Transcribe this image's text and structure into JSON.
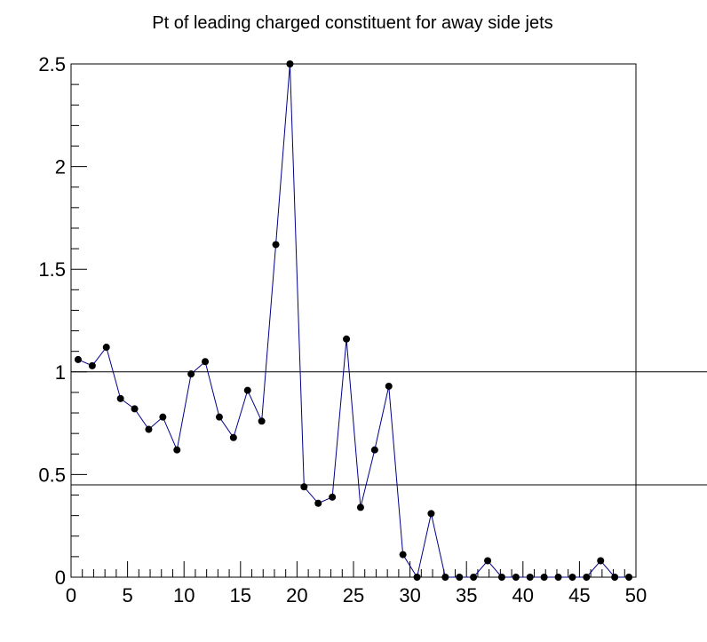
{
  "chart_data": {
    "type": "line",
    "title": "Pt of leading charged constituent for away side jets",
    "xlabel": "",
    "ylabel": "",
    "xlim": [
      0,
      50
    ],
    "ylim": [
      0,
      2.5
    ],
    "x_tick_labels": [
      "0",
      "5",
      "10",
      "15",
      "20",
      "25",
      "30",
      "35",
      "40",
      "45",
      "50"
    ],
    "y_tick_labels": [
      "0",
      "0.5",
      "1",
      "1.5",
      "2",
      "2.5"
    ],
    "grid": false,
    "legend": "none",
    "series": [
      {
        "color": "#00008b",
        "marker_color": "#000000",
        "x": [
          0.625,
          1.875,
          3.125,
          4.375,
          5.625,
          6.875,
          8.125,
          9.375,
          10.625,
          11.875,
          13.125,
          14.375,
          15.625,
          16.875,
          18.125,
          19.375,
          20.625,
          21.875,
          23.125,
          24.375,
          25.625,
          26.875,
          28.125,
          29.375,
          30.625,
          31.875,
          33.125,
          34.375,
          35.625,
          36.875,
          38.125,
          39.375,
          40.625,
          41.875,
          43.125,
          44.375,
          45.625,
          46.875,
          48.125,
          49.375
        ],
        "values": [
          1.06,
          1.03,
          1.12,
          0.87,
          0.82,
          0.72,
          0.78,
          0.62,
          0.99,
          1.05,
          0.78,
          0.68,
          0.91,
          0.76,
          1.62,
          2.5,
          0.44,
          0.36,
          0.39,
          1.16,
          0.34,
          0.62,
          0.93,
          0.11,
          0.0,
          0.31,
          0.0,
          0.0,
          0.0,
          0.08,
          0.0,
          0.0,
          0.0,
          0.0,
          0.0,
          0.0,
          0.0,
          0.08,
          0.0,
          0.0
        ]
      }
    ],
    "reference_lines_y": [
      1.0,
      0.45
    ]
  }
}
